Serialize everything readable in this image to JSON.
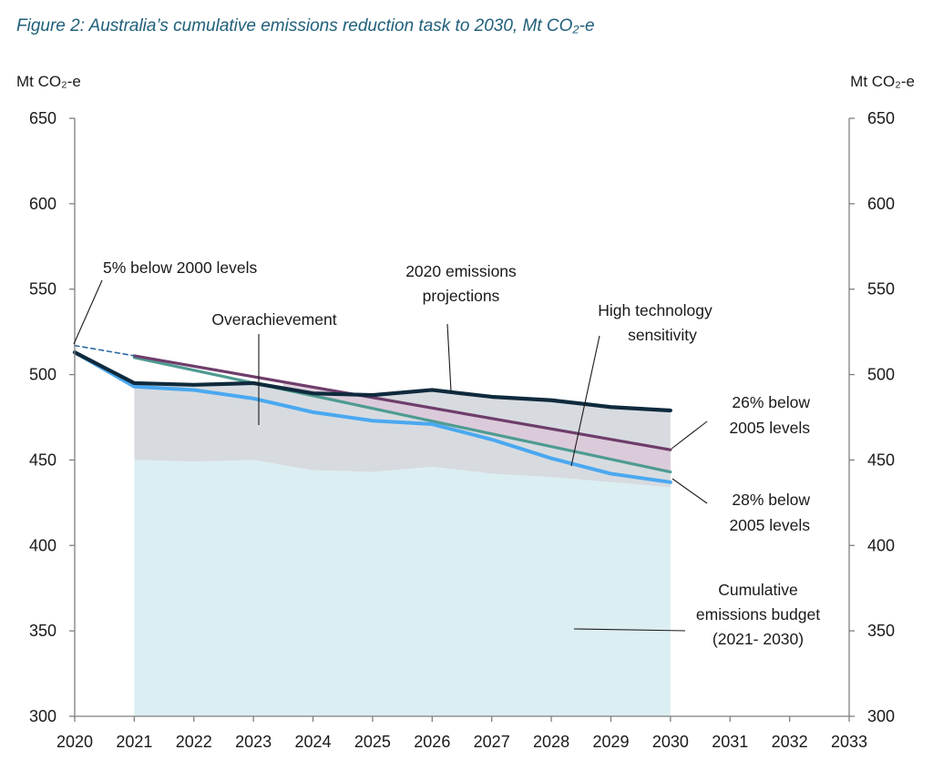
{
  "figure_title": "Figure 2: Australia’s cumulative emissions reduction task to 2030, Mt CO₂-e",
  "chart_data": {
    "type": "line",
    "title": "Figure 2: Australia’s cumulative emissions reduction task to 2030, Mt CO₂-e",
    "ylabel_left": "Mt CO₂-e",
    "ylabel_right": "Mt CO₂-e",
    "xlim": [
      2020,
      2033
    ],
    "ylim": [
      300,
      650
    ],
    "x_ticks": [
      2020,
      2021,
      2022,
      2023,
      2024,
      2025,
      2026,
      2027,
      2028,
      2029,
      2030,
      2031,
      2032,
      2033
    ],
    "y_ticks": [
      300,
      350,
      400,
      450,
      500,
      550,
      600,
      650
    ],
    "series": [
      {
        "name": "2020 emissions projections",
        "color": "#0f2a3d",
        "x": [
          2020,
          2021,
          2022,
          2023,
          2024,
          2025,
          2026,
          2027,
          2028,
          2029,
          2030
        ],
        "values": [
          513,
          495,
          494,
          495,
          489,
          488,
          491,
          487,
          485,
          481,
          479
        ]
      },
      {
        "name": "High technology sensitivity",
        "color": "#4aa8f0",
        "x": [
          2020,
          2021,
          2022,
          2023,
          2024,
          2025,
          2026,
          2027,
          2028,
          2029,
          2030
        ],
        "values": [
          513,
          493,
          491,
          486,
          478,
          473,
          471,
          462,
          451,
          442,
          437
        ]
      },
      {
        "name": "26% below 2005 levels",
        "color": "#6e3d6b",
        "x": [
          2021,
          2030
        ],
        "values": [
          511,
          456
        ]
      },
      {
        "name": "28% below 2005 levels",
        "color": "#4e9b92",
        "x": [
          2021,
          2030
        ],
        "values": [
          510,
          443
        ]
      },
      {
        "name": "5% below 2000 levels",
        "color": "#2d6a9e",
        "style": "dashed",
        "x": [
          2020,
          2021
        ],
        "values": [
          517,
          511
        ]
      },
      {
        "name": "Cumulative emissions budget (2021- 2030)",
        "type": "area",
        "color": "#dbeef2",
        "x": [
          2021,
          2022,
          2023,
          2024,
          2025,
          2026,
          2027,
          2028,
          2029,
          2030
        ],
        "values": [
          450,
          449,
          450,
          444,
          443,
          446,
          442,
          440,
          437,
          434
        ]
      },
      {
        "name": "Overachievement",
        "type": "area",
        "color": "#d7dbe0"
      }
    ],
    "annotations": [
      {
        "text": "5% below  2000 levels"
      },
      {
        "text": "2020 emissions"
      },
      {
        "text": "projections"
      },
      {
        "text": "Overachievement"
      },
      {
        "text": "High technology"
      },
      {
        "text": "sensitivity"
      },
      {
        "text": "26% below"
      },
      {
        "text": "2005 levels"
      },
      {
        "text": "28% below"
      },
      {
        "text": "2005 levels"
      },
      {
        "text": "Cumulative"
      },
      {
        "text": "emissions budget"
      },
      {
        "text": "(2021- 2030)"
      }
    ],
    "grid": false,
    "legend": "none"
  }
}
